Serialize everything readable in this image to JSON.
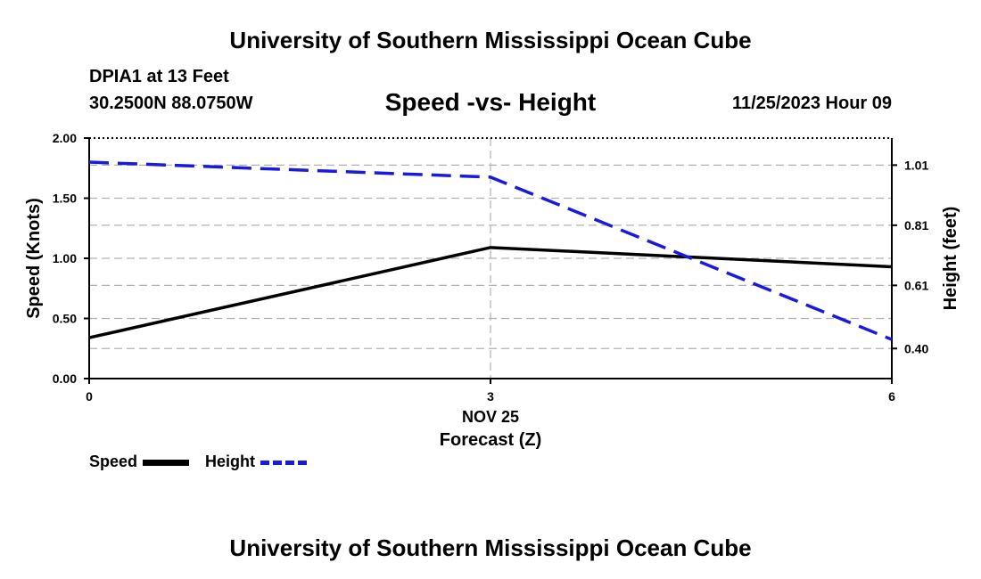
{
  "header": {
    "title": "University of Southern Mississippi Ocean Cube",
    "station": "DPIA1 at 13 Feet",
    "coordinates": "30.2500N  88.0750W",
    "chart_title": "Speed -vs- Height",
    "datetime": "11/25/2023 Hour 09"
  },
  "footer": {
    "title": "University of Southern Mississippi Ocean Cube"
  },
  "legend": {
    "speed_label": "Speed",
    "height_label": "Height"
  },
  "colors": {
    "speed": "#000000",
    "height": "#1a1adc",
    "grid": "#b0b0b0",
    "axis": "#000000"
  },
  "chart_data": {
    "type": "line",
    "title": "Speed -vs- Height",
    "x": [
      0,
      3,
      6
    ],
    "xlim": [
      0,
      6
    ],
    "xticks": [
      "0",
      "3",
      "6"
    ],
    "xlabel": "Forecast (Z)",
    "x_date_label": "NOV 25",
    "ylabel_left": "Speed (Knots)",
    "ylim_left": [
      0,
      2
    ],
    "yticks_left": [
      "0.00",
      "0.50",
      "1.00",
      "1.50",
      "2.00"
    ],
    "ylabel_right": "Height (feet)",
    "ylim_right": [
      0.3,
      1.1
    ],
    "yticks_right_values": [
      0.4,
      0.61,
      0.81,
      1.01
    ],
    "yticks_right": [
      "0.40",
      "0.61",
      "0.81",
      "1.01"
    ],
    "grid": true,
    "series": [
      {
        "name": "Speed",
        "axis": "left",
        "style": "solid",
        "values": [
          0.34,
          1.09,
          0.93
        ]
      },
      {
        "name": "Height",
        "axis": "right",
        "style": "dashed",
        "values": [
          1.02,
          0.97,
          0.43
        ]
      }
    ]
  }
}
